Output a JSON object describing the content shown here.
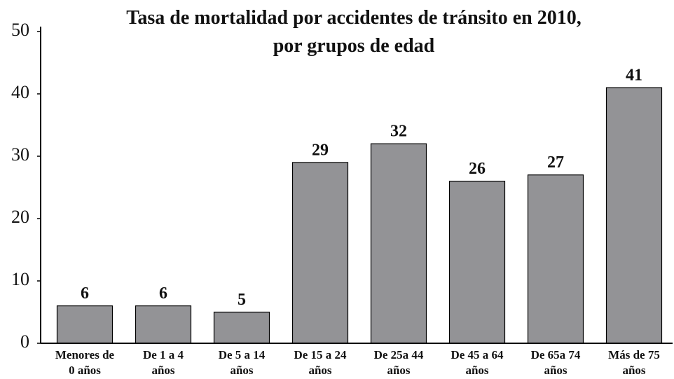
{
  "chart_data": {
    "type": "bar",
    "title": "Tasa de mortalidad por accidentes de tránsito en 2010,\npor grupos de edad",
    "categories": [
      "Menores de\n0 años",
      "De 1 a 4\naños",
      "De 5 a 14\naños",
      "De 15 a 24\naños",
      "De 25a 44\naños",
      "De 45 a 64\naños",
      "De 65a 74\naños",
      "Más de 75\naños"
    ],
    "values": [
      6,
      6,
      5,
      29,
      32,
      26,
      27,
      41
    ],
    "color": "#939396",
    "ylim": [
      0,
      50
    ],
    "yticks": [
      0,
      10,
      20,
      30,
      40,
      50
    ],
    "grid": false
  }
}
